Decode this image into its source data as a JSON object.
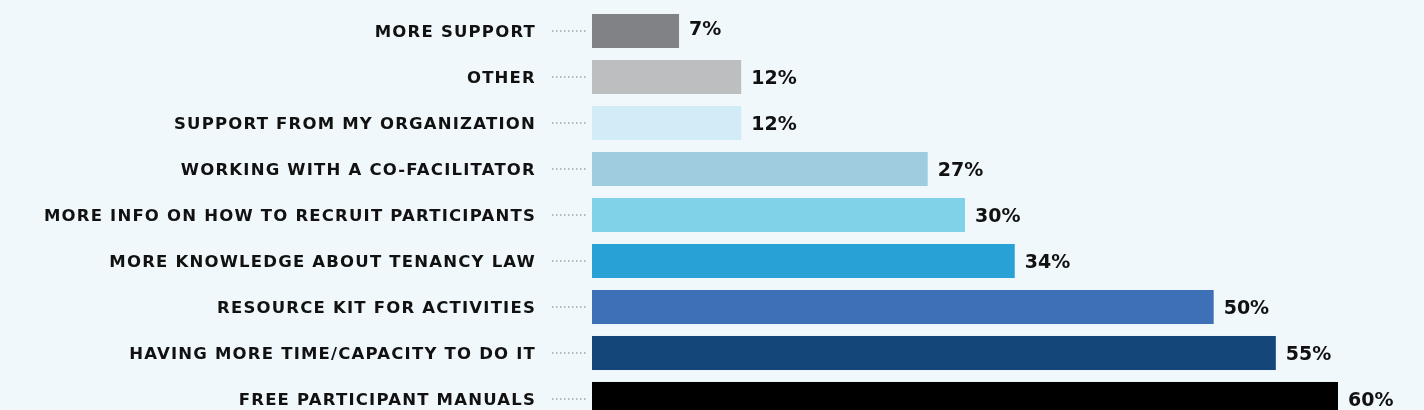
{
  "chart_data": {
    "type": "bar",
    "orientation": "horizontal",
    "categories": [
      "MORE SUPPORT",
      "OTHER",
      "SUPPORT FROM MY ORGANIZATION",
      "WORKING WITH A CO-FACILITATOR",
      "MORE INFO ON HOW TO RECRUIT PARTICIPANTS",
      "MORE KNOWLEDGE ABOUT TENANCY LAW",
      "RESOURCE KIT FOR ACTIVITIES",
      "HAVING MORE TIME/CAPACITY TO DO IT",
      "FREE PARTICIPANT MANUALS"
    ],
    "values": [
      7,
      12,
      12,
      27,
      30,
      34,
      50,
      55,
      60
    ],
    "colors": [
      "#808285",
      "#bcbec0",
      "#d1ecf6",
      "#a0cce0",
      "#80d2e8",
      "#28a1d6",
      "#3d70b7",
      "#15467a",
      "#000000"
    ],
    "value_labels": [
      "7%",
      "12%",
      "12%",
      "27%",
      "30%",
      "34%",
      "50%",
      "55%",
      "60%"
    ]
  }
}
